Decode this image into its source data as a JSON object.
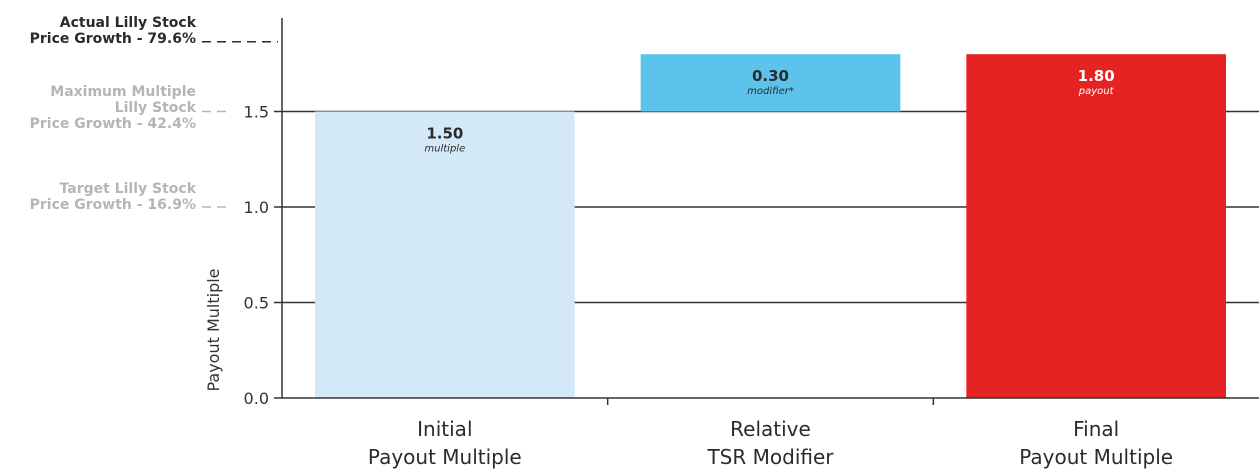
{
  "chart_data": {
    "type": "bar",
    "categories": [
      [
        "Initial",
        "Payout Multiple"
      ],
      [
        "Relative",
        "TSR Modifier"
      ],
      [
        "Final",
        "Payout Multiple"
      ]
    ],
    "bars": [
      {
        "category": 0,
        "base": 0,
        "value": 1.5,
        "label": "1.50",
        "sublabel": "multiple",
        "color": "#d4e9f7"
      },
      {
        "category": 1,
        "base": 1.5,
        "value": 0.3,
        "label": "0.30",
        "sublabel": "modifier*",
        "color": "#5cc3ec"
      },
      {
        "category": 2,
        "base": 0,
        "value": 1.8,
        "label": "1.80",
        "sublabel": "payout",
        "color": "#e42322"
      }
    ],
    "ylabel": "Payout Multiple",
    "ylim": [
      0,
      1.9
    ],
    "yticks": [
      0.0,
      0.5,
      1.0,
      1.5
    ],
    "ytick_labels": [
      "0.0",
      "0.5",
      "1.0",
      "1.5"
    ],
    "grid": true,
    "reference_lines": [
      {
        "value": 1.0,
        "label_lines": [
          "Target Lilly Stock",
          "Price Growth - 16.9%"
        ],
        "color": "#b3b6b8"
      },
      {
        "value": 1.5,
        "label_lines": [
          "Maximum Multiple",
          "Lilly Stock",
          "Price Growth - 42.4%"
        ],
        "color": "#b3b6b8"
      },
      {
        "value": 1.865,
        "label_lines": [
          "Actual Lilly Stock",
          "Price Growth - 79.6%"
        ],
        "color": "#2b2b2b"
      }
    ]
  }
}
